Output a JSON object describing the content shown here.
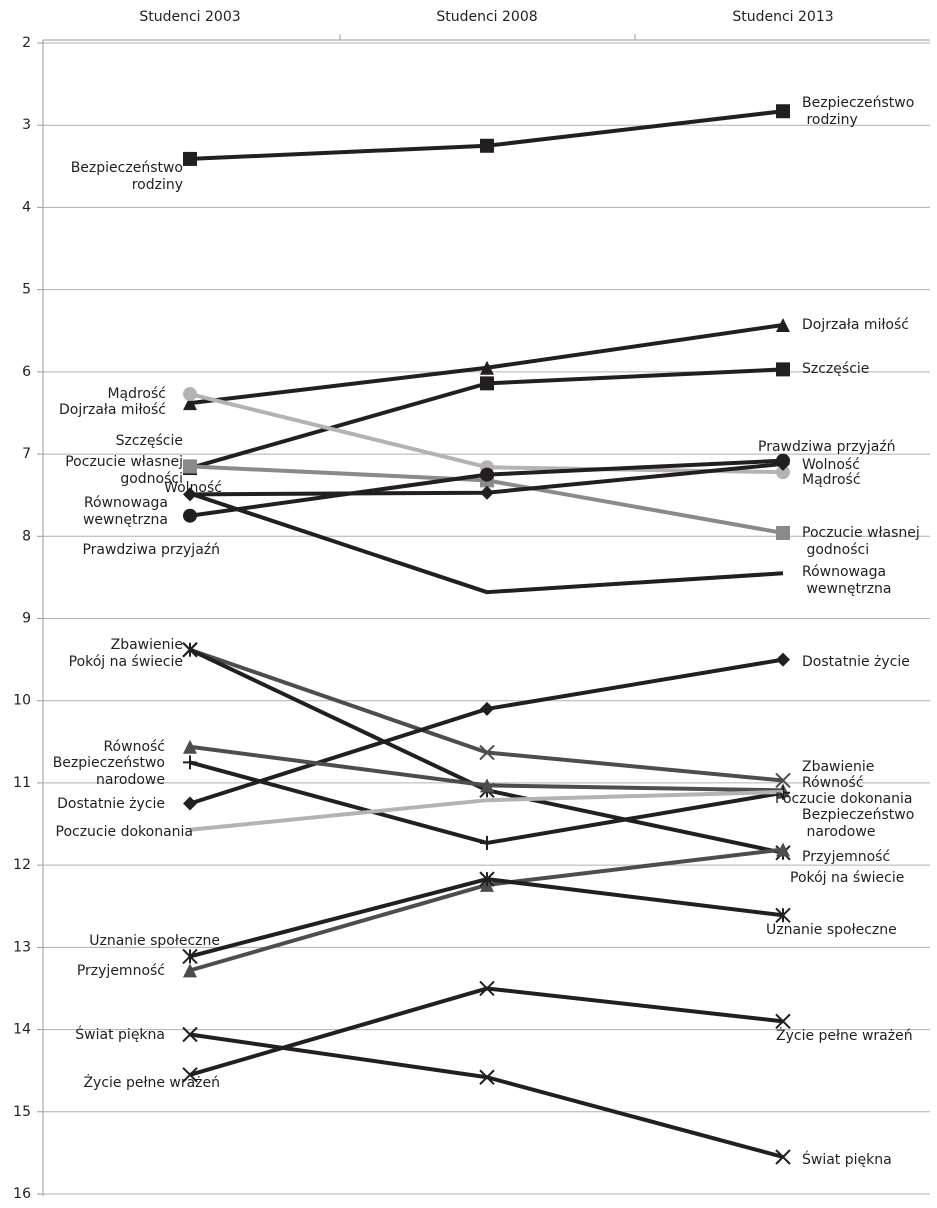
{
  "chart_data": {
    "type": "line",
    "categories": [
      "Studenci 2003",
      "Studenci 2008",
      "Studenci 2013"
    ],
    "ylim": [
      2,
      16
    ],
    "y_reversed": true,
    "yticks": [
      2,
      3,
      4,
      5,
      6,
      7,
      8,
      9,
      10,
      11,
      12,
      13,
      14,
      15,
      16
    ],
    "grid": true,
    "series": [
      {
        "name": "Bezpieczeństwo rodziny",
        "color": "#231f20",
        "marker": "square",
        "values": [
          3.41,
          3.25,
          2.83
        ]
      },
      {
        "name": "Dojrzała miłość",
        "color": "#231f20",
        "marker": "triangle",
        "values": [
          6.38,
          5.95,
          5.43
        ]
      },
      {
        "name": "Szczęście",
        "color": "#231f20",
        "marker": "square",
        "values": [
          7.17,
          6.14,
          5.97
        ]
      },
      {
        "name": "Mądrość",
        "color": "#b3b3b3",
        "marker": "circle",
        "values": [
          6.27,
          7.16,
          7.22
        ]
      },
      {
        "name": "Poczucie własnej godności",
        "color": "#8a8a8a",
        "marker": "square",
        "values": [
          7.15,
          7.32,
          7.96
        ]
      },
      {
        "name": "Wolność",
        "color": "#231f20",
        "marker": "diamond",
        "values": [
          7.49,
          7.47,
          7.12
        ]
      },
      {
        "name": "Prawdziwa przyjaźń",
        "color": "#231f20",
        "marker": "circle",
        "values": [
          7.75,
          7.25,
          7.08
        ]
      },
      {
        "name": "Równowaga wewnętrzna",
        "color": "#231f20",
        "marker": "none",
        "values": [
          7.48,
          8.68,
          8.45
        ]
      },
      {
        "name": "Zbawienie",
        "color": "#4d4d4d",
        "marker": "x",
        "values": [
          9.38,
          10.63,
          10.97
        ]
      },
      {
        "name": "Pokój na świecie",
        "color": "#231f20",
        "marker": "star",
        "values": [
          9.38,
          11.09,
          11.85
        ]
      },
      {
        "name": "Dostatnie życie",
        "color": "#231f20",
        "marker": "diamond",
        "values": [
          11.25,
          10.1,
          9.5
        ]
      },
      {
        "name": "Równość",
        "color": "#4d4d4d",
        "marker": "triangle",
        "values": [
          10.56,
          11.03,
          11.09
        ]
      },
      {
        "name": "Bezpieczeństwo narodowe",
        "color": "#231f20",
        "marker": "plus",
        "values": [
          10.75,
          11.73,
          11.12
        ]
      },
      {
        "name": "Poczucie dokonania",
        "color": "#b3b3b3",
        "marker": "none",
        "values": [
          11.57,
          11.21,
          11.11
        ]
      },
      {
        "name": "Przyjemność",
        "color": "#4d4d4d",
        "marker": "triangle",
        "values": [
          13.28,
          12.24,
          11.81
        ]
      },
      {
        "name": "Uznanie społeczne",
        "color": "#231f20",
        "marker": "star",
        "values": [
          13.11,
          12.17,
          12.61
        ]
      },
      {
        "name": "Świat piękna",
        "color": "#231f20",
        "marker": "x",
        "values": [
          14.06,
          14.58,
          15.55
        ]
      },
      {
        "name": "Życie pełne wrażeń",
        "color": "#231f20",
        "marker": "x",
        "values": [
          14.55,
          13.5,
          13.9
        ]
      }
    ]
  }
}
